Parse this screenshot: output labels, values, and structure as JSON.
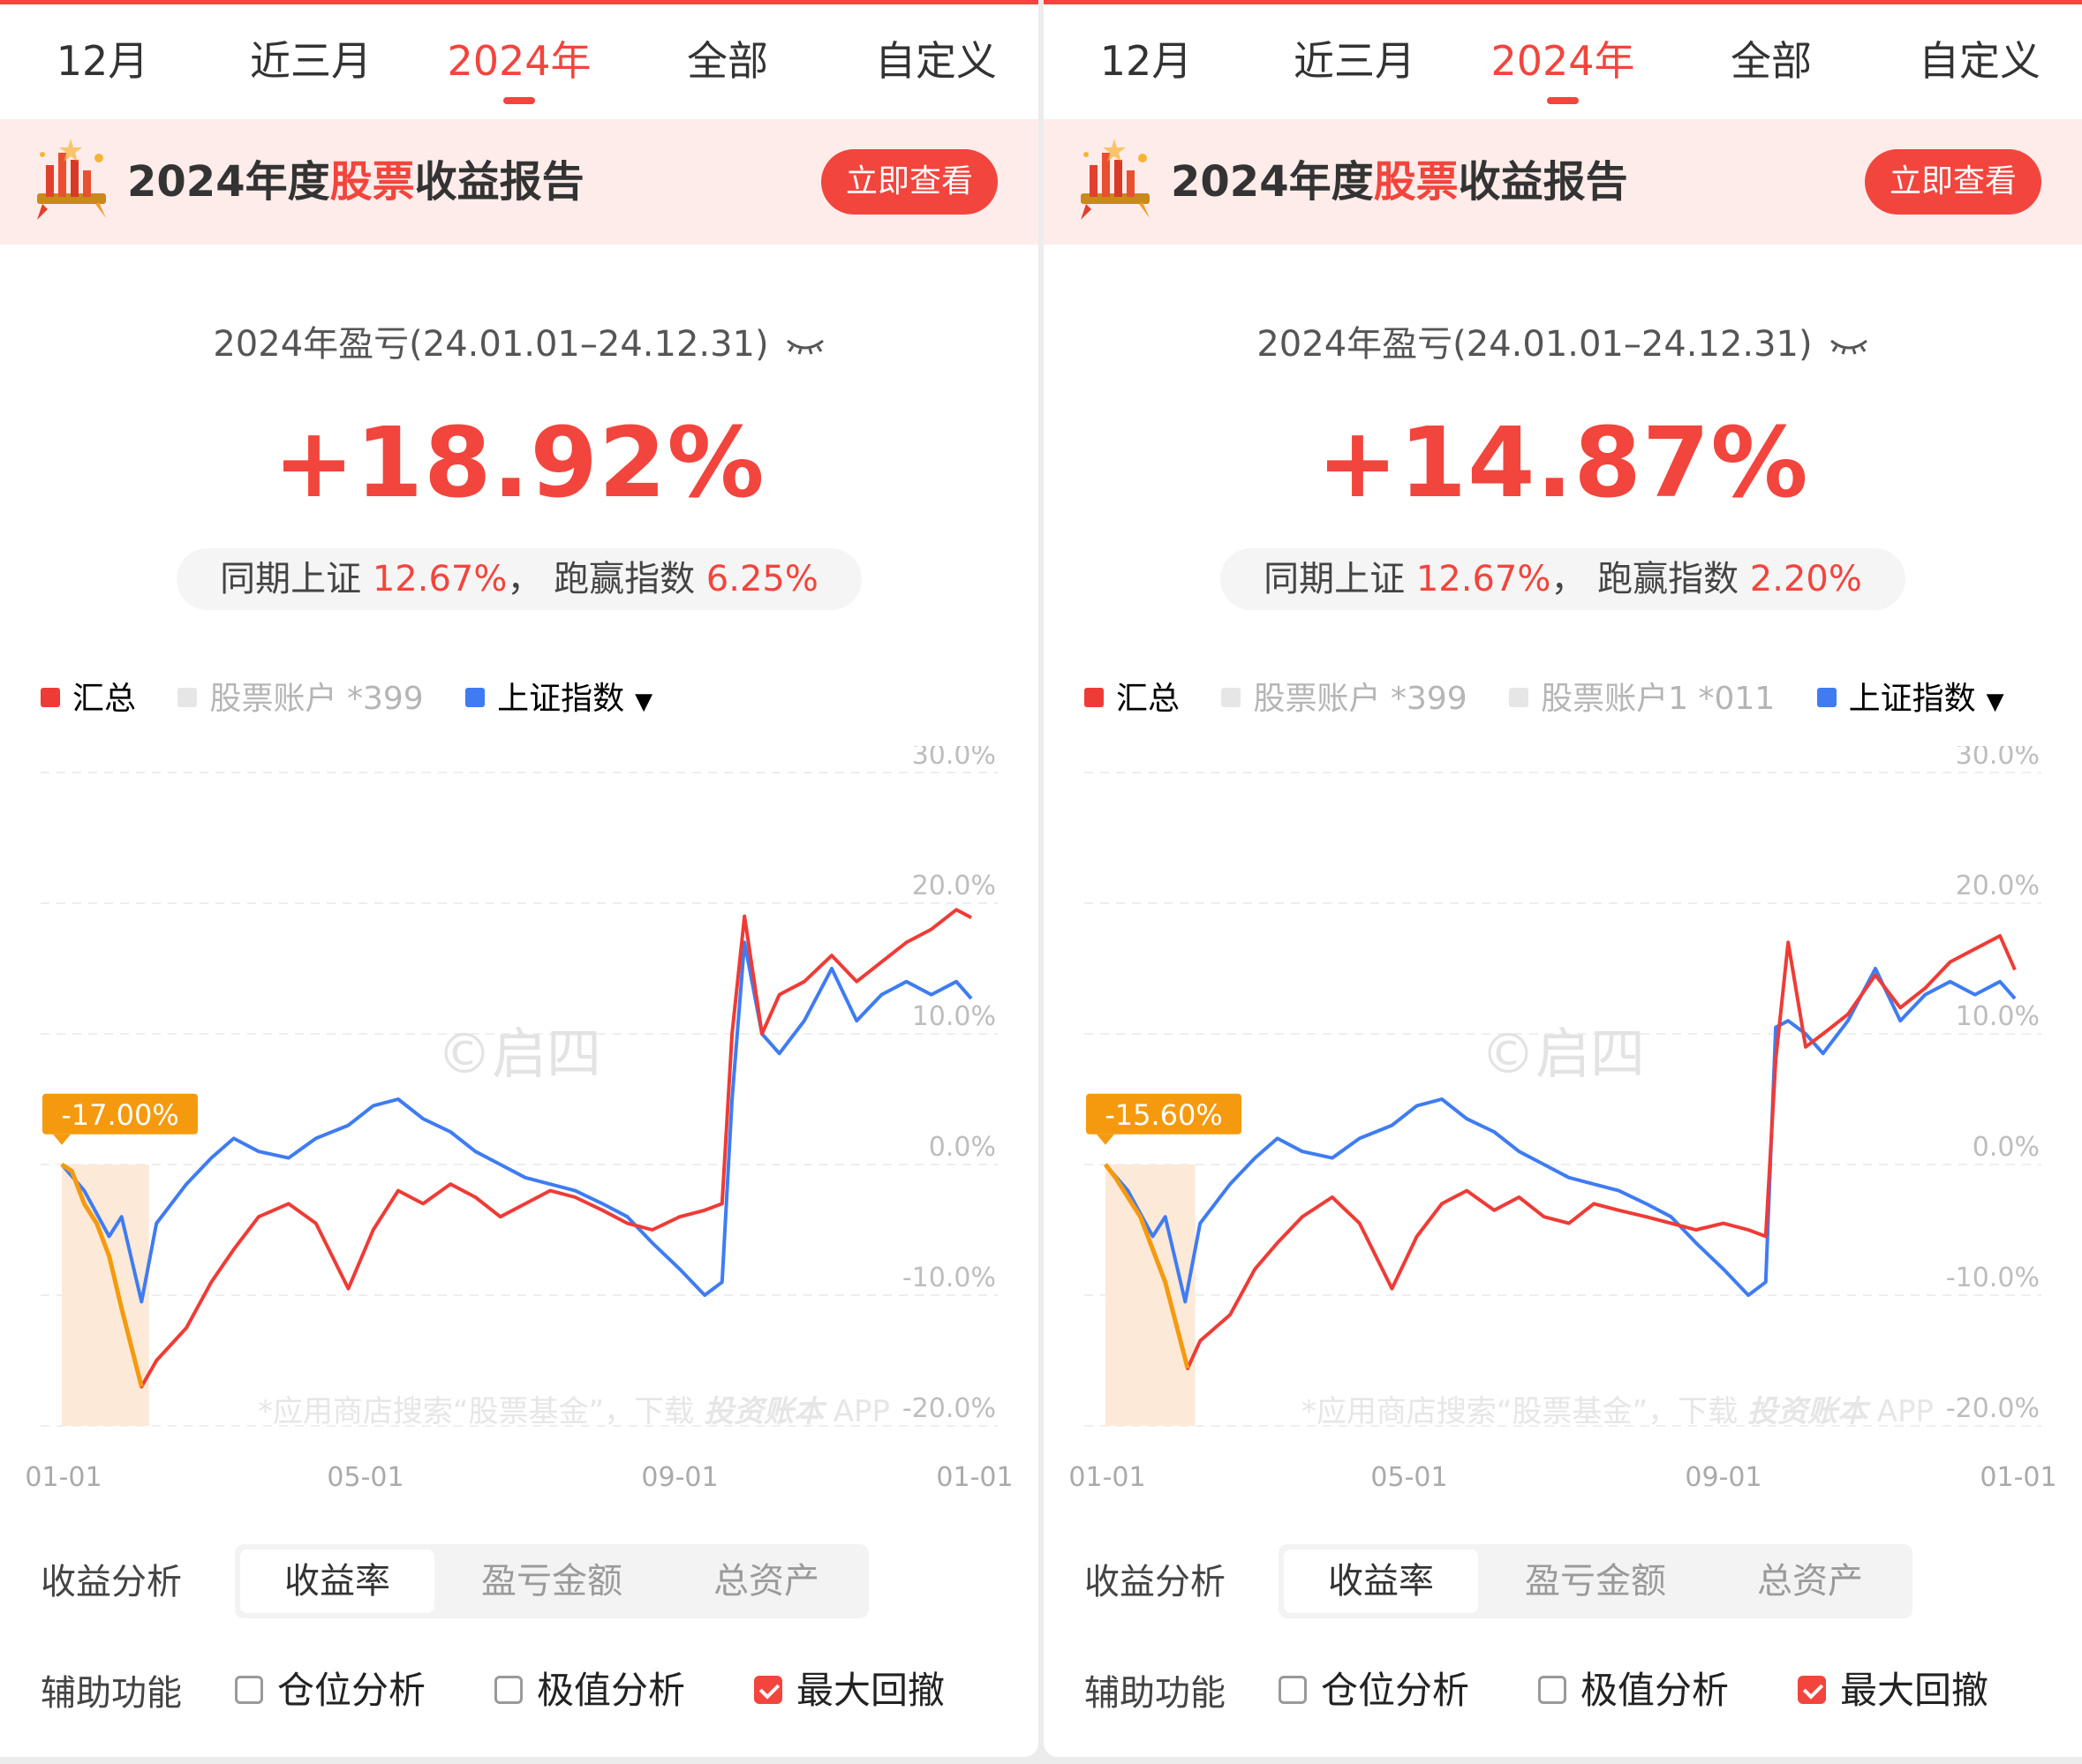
{
  "colors": {
    "accent": "#f2453d",
    "summary_line": "#ef3b36",
    "index_line": "#3f7cf2",
    "drawdown_line": "#f59a0f",
    "drawdown_fill": "#fde9d7",
    "muted": "#b5b5b5"
  },
  "banner_icon": "fireworks-icon",
  "panels": [
    {
      "tabs": [
        "12月",
        "近三月",
        "2024年",
        "全部",
        "自定义"
      ],
      "active_tab": "2024年",
      "banner": {
        "pre": "2024年度",
        "highlight": "股票",
        "post": "收益报告",
        "button": "立即查看"
      },
      "period": "2024年盈亏(24.01.01–24.12.31)",
      "eye_icon": "eye-closed-icon",
      "return": "+18.92%",
      "compare": {
        "prefix": "同期上证",
        "index_return": "12.67%",
        "sep": "，",
        "mid": "跑赢指数",
        "excess": "6.25%"
      },
      "legend": [
        {
          "label": "汇总",
          "color": "#ef3b36",
          "active": true
        },
        {
          "label": "股票账户",
          "suffix": "*399",
          "color": "#e6e6e6",
          "active": false
        },
        {
          "label": "上证指数",
          "color": "#3f7cf2",
          "active": true,
          "dropdown": true
        }
      ],
      "analysis": {
        "label": "收益分析",
        "options": [
          "收益率",
          "盈亏金额",
          "总资产"
        ],
        "selected": "收益率"
      },
      "aux": {
        "label": "辅助功能",
        "items": [
          {
            "label": "仓位分析",
            "checked": false
          },
          {
            "label": "极值分析",
            "checked": false
          },
          {
            "label": "最大回撤",
            "checked": true
          }
        ]
      },
      "chart_data": {
        "type": "line",
        "x_tick_labels": [
          "01-01",
          "05-01",
          "09-01",
          "01-01"
        ],
        "y_tick_labels": [
          "30.0%",
          "20.0%",
          "10.0%",
          "0.0%",
          "-10.0%",
          "-20.0%"
        ],
        "ylim": [
          -20,
          30
        ],
        "watermark": "©启四",
        "footer_watermark": {
          "text": "*应用商店搜索“股票基金”，下载",
          "brand": "投资账本",
          "suffix": "APP"
        },
        "max_drawdown": {
          "label": "-17.00%",
          "start": "01-01",
          "end": "02-05",
          "value": -17.0
        },
        "series": [
          {
            "name": "汇总",
            "values": [
              [
                "01-01",
                0.0
              ],
              [
                "01-05",
                -0.5
              ],
              [
                "01-10",
                -3.0
              ],
              [
                "01-15",
                -4.5
              ],
              [
                "01-20",
                -7.0
              ],
              [
                "01-25",
                -11.0
              ],
              [
                "02-02",
                -17.0
              ],
              [
                "02-08",
                -15.0
              ],
              [
                "02-20",
                -12.5
              ],
              [
                "03-01",
                -9.0
              ],
              [
                "03-10",
                -6.5
              ],
              [
                "03-20",
                -4.0
              ],
              [
                "04-01",
                -3.0
              ],
              [
                "04-12",
                -4.5
              ],
              [
                "04-25",
                -9.5
              ],
              [
                "05-05",
                -5.0
              ],
              [
                "05-15",
                -2.0
              ],
              [
                "05-25",
                -3.0
              ],
              [
                "06-05",
                -1.5
              ],
              [
                "06-15",
                -2.5
              ],
              [
                "06-25",
                -4.0
              ],
              [
                "07-05",
                -3.0
              ],
              [
                "07-15",
                -2.0
              ],
              [
                "07-25",
                -2.5
              ],
              [
                "08-05",
                -3.5
              ],
              [
                "08-15",
                -4.5
              ],
              [
                "08-25",
                -5.0
              ],
              [
                "09-05",
                -4.0
              ],
              [
                "09-15",
                -3.5
              ],
              [
                "09-22",
                -3.0
              ],
              [
                "09-26",
                10.0
              ],
              [
                "10-01",
                19.0
              ],
              [
                "10-08",
                10.0
              ],
              [
                "10-15",
                13.0
              ],
              [
                "10-25",
                14.0
              ],
              [
                "11-05",
                16.0
              ],
              [
                "11-15",
                14.0
              ],
              [
                "11-25",
                15.5
              ],
              [
                "12-05",
                17.0
              ],
              [
                "12-15",
                18.0
              ],
              [
                "12-25",
                19.5
              ],
              [
                "12-31",
                18.9
              ]
            ]
          },
          {
            "name": "上证指数",
            "values": [
              [
                "01-01",
                0.0
              ],
              [
                "01-10",
                -2.0
              ],
              [
                "01-20",
                -5.5
              ],
              [
                "01-25",
                -4.0
              ],
              [
                "02-02",
                -10.5
              ],
              [
                "02-08",
                -4.5
              ],
              [
                "02-20",
                -1.5
              ],
              [
                "03-01",
                0.5
              ],
              [
                "03-10",
                2.0
              ],
              [
                "03-20",
                1.0
              ],
              [
                "04-01",
                0.5
              ],
              [
                "04-12",
                2.0
              ],
              [
                "04-25",
                3.0
              ],
              [
                "05-05",
                4.5
              ],
              [
                "05-15",
                5.0
              ],
              [
                "05-25",
                3.5
              ],
              [
                "06-05",
                2.5
              ],
              [
                "06-15",
                1.0
              ],
              [
                "06-25",
                0.0
              ],
              [
                "07-05",
                -1.0
              ],
              [
                "07-15",
                -1.5
              ],
              [
                "07-25",
                -2.0
              ],
              [
                "08-05",
                -3.0
              ],
              [
                "08-15",
                -4.0
              ],
              [
                "08-25",
                -6.0
              ],
              [
                "09-05",
                -8.0
              ],
              [
                "09-15",
                -10.0
              ],
              [
                "09-22",
                -9.0
              ],
              [
                "09-26",
                5.0
              ],
              [
                "10-01",
                17.0
              ],
              [
                "10-08",
                10.0
              ],
              [
                "10-15",
                8.5
              ],
              [
                "10-25",
                11.0
              ],
              [
                "11-05",
                15.0
              ],
              [
                "11-15",
                11.0
              ],
              [
                "11-25",
                13.0
              ],
              [
                "12-05",
                14.0
              ],
              [
                "12-15",
                13.0
              ],
              [
                "12-25",
                14.0
              ],
              [
                "12-31",
                12.7
              ]
            ]
          }
        ]
      }
    },
    {
      "tabs": [
        "12月",
        "近三月",
        "2024年",
        "全部",
        "自定义"
      ],
      "active_tab": "2024年",
      "banner": {
        "pre": "2024年度",
        "highlight": "股票",
        "post": "收益报告",
        "button": "立即查看"
      },
      "period": "2024年盈亏(24.01.01–24.12.31)",
      "eye_icon": "eye-closed-icon",
      "return": "+14.87%",
      "compare": {
        "prefix": "同期上证",
        "index_return": "12.67%",
        "sep": "，",
        "mid": "跑赢指数",
        "excess": "2.20%"
      },
      "legend": [
        {
          "label": "汇总",
          "color": "#ef3b36",
          "active": true
        },
        {
          "label": "股票账户",
          "suffix": "*399",
          "color": "#e6e6e6",
          "active": false
        },
        {
          "label": "股票账户1",
          "suffix": "*011",
          "color": "#e6e6e6",
          "active": false
        },
        {
          "label": "上证指数",
          "color": "#3f7cf2",
          "active": true,
          "dropdown": true
        }
      ],
      "analysis": {
        "label": "收益分析",
        "options": [
          "收益率",
          "盈亏金额",
          "总资产"
        ],
        "selected": "收益率"
      },
      "aux": {
        "label": "辅助功能",
        "items": [
          {
            "label": "仓位分析",
            "checked": false
          },
          {
            "label": "极值分析",
            "checked": false
          },
          {
            "label": "最大回撤",
            "checked": true
          }
        ]
      },
      "chart_data": {
        "type": "line",
        "x_tick_labels": [
          "01-01",
          "05-01",
          "09-01",
          "01-01"
        ],
        "y_tick_labels": [
          "30.0%",
          "20.0%",
          "10.0%",
          "0.0%",
          "-10.0%",
          "-20.0%"
        ],
        "ylim": [
          -20,
          30
        ],
        "watermark": "©启四",
        "footer_watermark": {
          "text": "*应用商店搜索“股票基金”，下载",
          "brand": "投资账本",
          "suffix": "APP"
        },
        "max_drawdown": {
          "label": "-15.60%",
          "start": "01-01",
          "end": "02-06",
          "value": -15.6
        },
        "series": [
          {
            "name": "汇总",
            "values": [
              [
                "01-01",
                0.0
              ],
              [
                "01-05",
                -1.0
              ],
              [
                "01-10",
                -2.5
              ],
              [
                "01-15",
                -4.0
              ],
              [
                "01-20",
                -6.5
              ],
              [
                "01-25",
                -9.0
              ],
              [
                "02-03",
                -15.6
              ],
              [
                "02-08",
                -13.5
              ],
              [
                "02-20",
                -11.5
              ],
              [
                "03-01",
                -8.0
              ],
              [
                "03-10",
                -6.0
              ],
              [
                "03-20",
                -4.0
              ],
              [
                "04-01",
                -2.5
              ],
              [
                "04-12",
                -4.5
              ],
              [
                "04-25",
                -9.5
              ],
              [
                "05-05",
                -5.5
              ],
              [
                "05-15",
                -3.0
              ],
              [
                "05-25",
                -2.0
              ],
              [
                "06-05",
                -3.5
              ],
              [
                "06-15",
                -2.5
              ],
              [
                "06-25",
                -4.0
              ],
              [
                "07-05",
                -4.5
              ],
              [
                "07-15",
                -3.0
              ],
              [
                "07-25",
                -3.5
              ],
              [
                "08-05",
                -4.0
              ],
              [
                "08-15",
                -4.5
              ],
              [
                "08-25",
                -5.0
              ],
              [
                "09-05",
                -4.5
              ],
              [
                "09-15",
                -5.0
              ],
              [
                "09-22",
                -5.5
              ],
              [
                "09-26",
                8.0
              ],
              [
                "10-01",
                17.0
              ],
              [
                "10-08",
                9.0
              ],
              [
                "10-15",
                10.0
              ],
              [
                "10-25",
                11.5
              ],
              [
                "11-05",
                14.5
              ],
              [
                "11-15",
                12.0
              ],
              [
                "11-25",
                13.5
              ],
              [
                "12-05",
                15.5
              ],
              [
                "12-15",
                16.5
              ],
              [
                "12-25",
                17.5
              ],
              [
                "12-31",
                14.9
              ]
            ]
          },
          {
            "name": "上证指数",
            "values": [
              [
                "01-01",
                0.0
              ],
              [
                "01-10",
                -2.0
              ],
              [
                "01-20",
                -5.5
              ],
              [
                "01-25",
                -4.0
              ],
              [
                "02-02",
                -10.5
              ],
              [
                "02-08",
                -4.5
              ],
              [
                "02-20",
                -1.5
              ],
              [
                "03-01",
                0.5
              ],
              [
                "03-10",
                2.0
              ],
              [
                "03-20",
                1.0
              ],
              [
                "04-01",
                0.5
              ],
              [
                "04-12",
                2.0
              ],
              [
                "04-25",
                3.0
              ],
              [
                "05-05",
                4.5
              ],
              [
                "05-15",
                5.0
              ],
              [
                "05-25",
                3.5
              ],
              [
                "06-05",
                2.5
              ],
              [
                "06-15",
                1.0
              ],
              [
                "06-25",
                0.0
              ],
              [
                "07-05",
                -1.0
              ],
              [
                "07-15",
                -1.5
              ],
              [
                "07-25",
                -2.0
              ],
              [
                "08-05",
                -3.0
              ],
              [
                "08-15",
                -4.0
              ],
              [
                "08-25",
                -6.0
              ],
              [
                "09-05",
                -8.0
              ],
              [
                "09-15",
                -10.0
              ],
              [
                "09-22",
                -9.0
              ],
              [
                "09-26",
                10.5
              ],
              [
                "10-01",
                11.0
              ],
              [
                "10-08",
                10.0
              ],
              [
                "10-15",
                8.5
              ],
              [
                "10-25",
                11.0
              ],
              [
                "11-05",
                15.0
              ],
              [
                "11-15",
                11.0
              ],
              [
                "11-25",
                13.0
              ],
              [
                "12-05",
                14.0
              ],
              [
                "12-15",
                13.0
              ],
              [
                "12-25",
                14.0
              ],
              [
                "12-31",
                12.7
              ]
            ]
          }
        ]
      }
    }
  ]
}
